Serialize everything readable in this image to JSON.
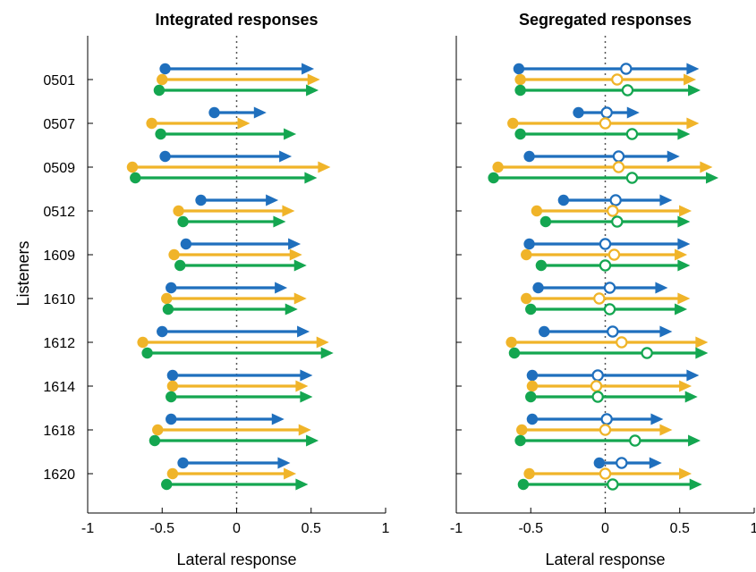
{
  "chart_data": {
    "type": "arrow-dot-plot",
    "ylabel": "Listeners",
    "listeners": [
      "0501",
      "0507",
      "0509",
      "0512",
      "1609",
      "1610",
      "1612",
      "1614",
      "1618",
      "1620"
    ],
    "colors": {
      "blue": "#1f6fbd",
      "yellow": "#f0b429",
      "green": "#14a650"
    },
    "xlim": [
      -1,
      1
    ],
    "xticks": [
      "-1",
      "-0.5",
      "0",
      "0.5",
      "1"
    ],
    "panels": [
      {
        "title": "Integrated responses",
        "xlabel": "Lateral response",
        "grid": false,
        "series": [
          {
            "color": "blue",
            "start": [
              -0.48,
              -0.15,
              -0.48,
              -0.24,
              -0.34,
              -0.44,
              -0.5,
              -0.43,
              -0.44,
              -0.36
            ],
            "end": [
              0.52,
              0.2,
              0.37,
              0.28,
              0.43,
              0.34,
              0.49,
              0.51,
              0.32,
              0.36
            ]
          },
          {
            "color": "yellow",
            "start": [
              -0.5,
              -0.57,
              -0.7,
              -0.39,
              -0.42,
              -0.47,
              -0.63,
              -0.43,
              -0.53,
              -0.43
            ],
            "end": [
              0.56,
              0.09,
              0.63,
              0.39,
              0.44,
              0.47,
              0.62,
              0.48,
              0.5,
              0.4
            ]
          },
          {
            "color": "green",
            "start": [
              -0.52,
              -0.51,
              -0.68,
              -0.36,
              -0.38,
              -0.46,
              -0.6,
              -0.44,
              -0.55,
              -0.47
            ],
            "end": [
              0.55,
              0.4,
              0.54,
              0.33,
              0.47,
              0.41,
              0.65,
              0.51,
              0.55,
              0.48
            ]
          }
        ]
      },
      {
        "title": "Segregated responses",
        "xlabel": "Lateral response",
        "grid": false,
        "series": [
          {
            "color": "blue",
            "start": [
              -0.58,
              -0.18,
              -0.51,
              -0.28,
              -0.51,
              -0.45,
              -0.41,
              -0.49,
              -0.49,
              -0.04
            ],
            "end": [
              0.63,
              0.23,
              0.5,
              0.45,
              0.57,
              0.42,
              0.45,
              0.63,
              0.39,
              0.38
            ],
            "mid": [
              0.14,
              0.01,
              0.09,
              0.07,
              0.0,
              0.03,
              0.05,
              -0.05,
              0.01,
              0.11
            ]
          },
          {
            "color": "yellow",
            "start": [
              -0.57,
              -0.62,
              -0.72,
              -0.46,
              -0.53,
              -0.53,
              -0.63,
              -0.49,
              -0.56,
              -0.51
            ],
            "end": [
              0.61,
              0.63,
              0.72,
              0.58,
              0.55,
              0.57,
              0.69,
              0.58,
              0.45,
              0.58
            ]
          },
          {
            "color": "green",
            "start": [
              -0.57,
              -0.57,
              -0.75,
              -0.4,
              -0.43,
              -0.5,
              -0.61,
              -0.5,
              -0.57,
              -0.55
            ],
            "end": [
              0.64,
              0.57,
              0.76,
              0.57,
              0.57,
              0.55,
              0.69,
              0.62,
              0.64,
              0.65
            ]
          }
        ]
      }
    ]
  }
}
